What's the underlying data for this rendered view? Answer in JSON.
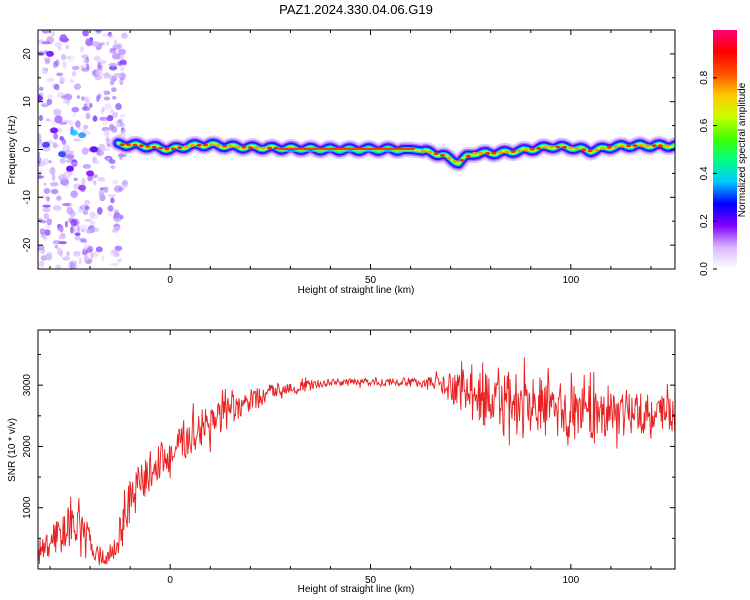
{
  "title": "PAZ1.2024.330.04.06.G19",
  "chart_data": [
    {
      "type": "heatmap",
      "xlabel": "Height of straight line (km)",
      "ylabel": "Frequency (Hz)",
      "xlim": [
        -33,
        126
      ],
      "ylim": [
        -25,
        25
      ],
      "x_ticks": [
        "0",
        "50",
        "100"
      ],
      "y_ticks": [
        "-20",
        "-10",
        "0",
        "10",
        "20"
      ],
      "grid": false,
      "ridge": {
        "description_free": true,
        "x": [
          -13,
          -10,
          -5,
          0,
          5,
          10,
          15,
          20,
          25,
          30,
          40,
          50,
          60,
          62,
          65,
          68,
          70,
          72,
          74,
          76,
          80,
          85,
          90,
          95,
          100,
          105,
          110,
          115,
          120,
          126
        ],
        "freq": [
          1.0,
          1.0,
          0.6,
          0.0,
          0.8,
          1.0,
          0.6,
          0.4,
          0.3,
          0.2,
          0.0,
          0.0,
          0.0,
          -0.2,
          -0.6,
          -1.2,
          -2.0,
          -2.8,
          -1.5,
          -0.8,
          -0.8,
          -0.5,
          0.0,
          0.6,
          0.4,
          -0.3,
          0.5,
          0.8,
          0.8,
          0.8
        ]
      },
      "colorbar": {
        "label": "Normalized spectral amplitude",
        "range": [
          0,
          1
        ],
        "ticks": [
          "0.0",
          "0.2",
          "0.4",
          "0.6",
          "0.8"
        ],
        "colors": [
          "#ffffff",
          "#d8b8ff",
          "#8000ff",
          "#0000ff",
          "#00c8ff",
          "#00ff80",
          "#40ff00",
          "#c8ff00",
          "#ffc800",
          "#ff5000",
          "#ff0000",
          "#ff0078"
        ]
      }
    },
    {
      "type": "line",
      "xlabel": "Height of straight line (km)",
      "ylabel": "SNR (10 * v/v)",
      "xlim": [
        -33,
        126
      ],
      "ylim": [
        0,
        3900
      ],
      "x_ticks": [
        "0",
        "50",
        "100"
      ],
      "y_ticks": [
        "1000",
        "2000",
        "3000"
      ],
      "grid": false,
      "series_color": "#e82020",
      "series": [
        {
          "x": [
            -33,
            -30,
            -27,
            -25,
            -23,
            -20,
            -18,
            -16,
            -14,
            -12,
            -10,
            -8,
            -5,
            -2,
            0,
            3,
            5,
            8,
            10,
            13,
            15,
            18,
            20,
            23,
            25,
            28,
            30,
            35,
            40,
            45,
            50,
            55,
            60,
            65,
            68,
            70,
            75,
            80,
            85,
            90,
            95,
            100,
            105,
            110,
            115,
            120,
            126
          ],
          "values": [
            200,
            450,
            600,
            750,
            700,
            450,
            250,
            150,
            300,
            700,
            1100,
            1350,
            1600,
            1800,
            1750,
            2050,
            2200,
            2300,
            2400,
            2500,
            2550,
            2650,
            2750,
            2800,
            2900,
            2950,
            2950,
            3000,
            3050,
            3050,
            3050,
            3050,
            3050,
            3050,
            3000,
            2950,
            2850,
            2750,
            2650,
            2600,
            2600,
            2550,
            2550,
            2600,
            2550,
            2550,
            2500
          ],
          "noise": [
            200,
            250,
            300,
            300,
            300,
            250,
            150,
            150,
            250,
            350,
            350,
            350,
            350,
            300,
            300,
            350,
            350,
            350,
            300,
            300,
            250,
            200,
            200,
            150,
            120,
            100,
            100,
            80,
            60,
            60,
            60,
            60,
            70,
            100,
            150,
            250,
            400,
            500,
            500,
            500,
            500,
            450,
            450,
            400,
            350,
            350,
            350
          ]
        }
      ]
    }
  ]
}
